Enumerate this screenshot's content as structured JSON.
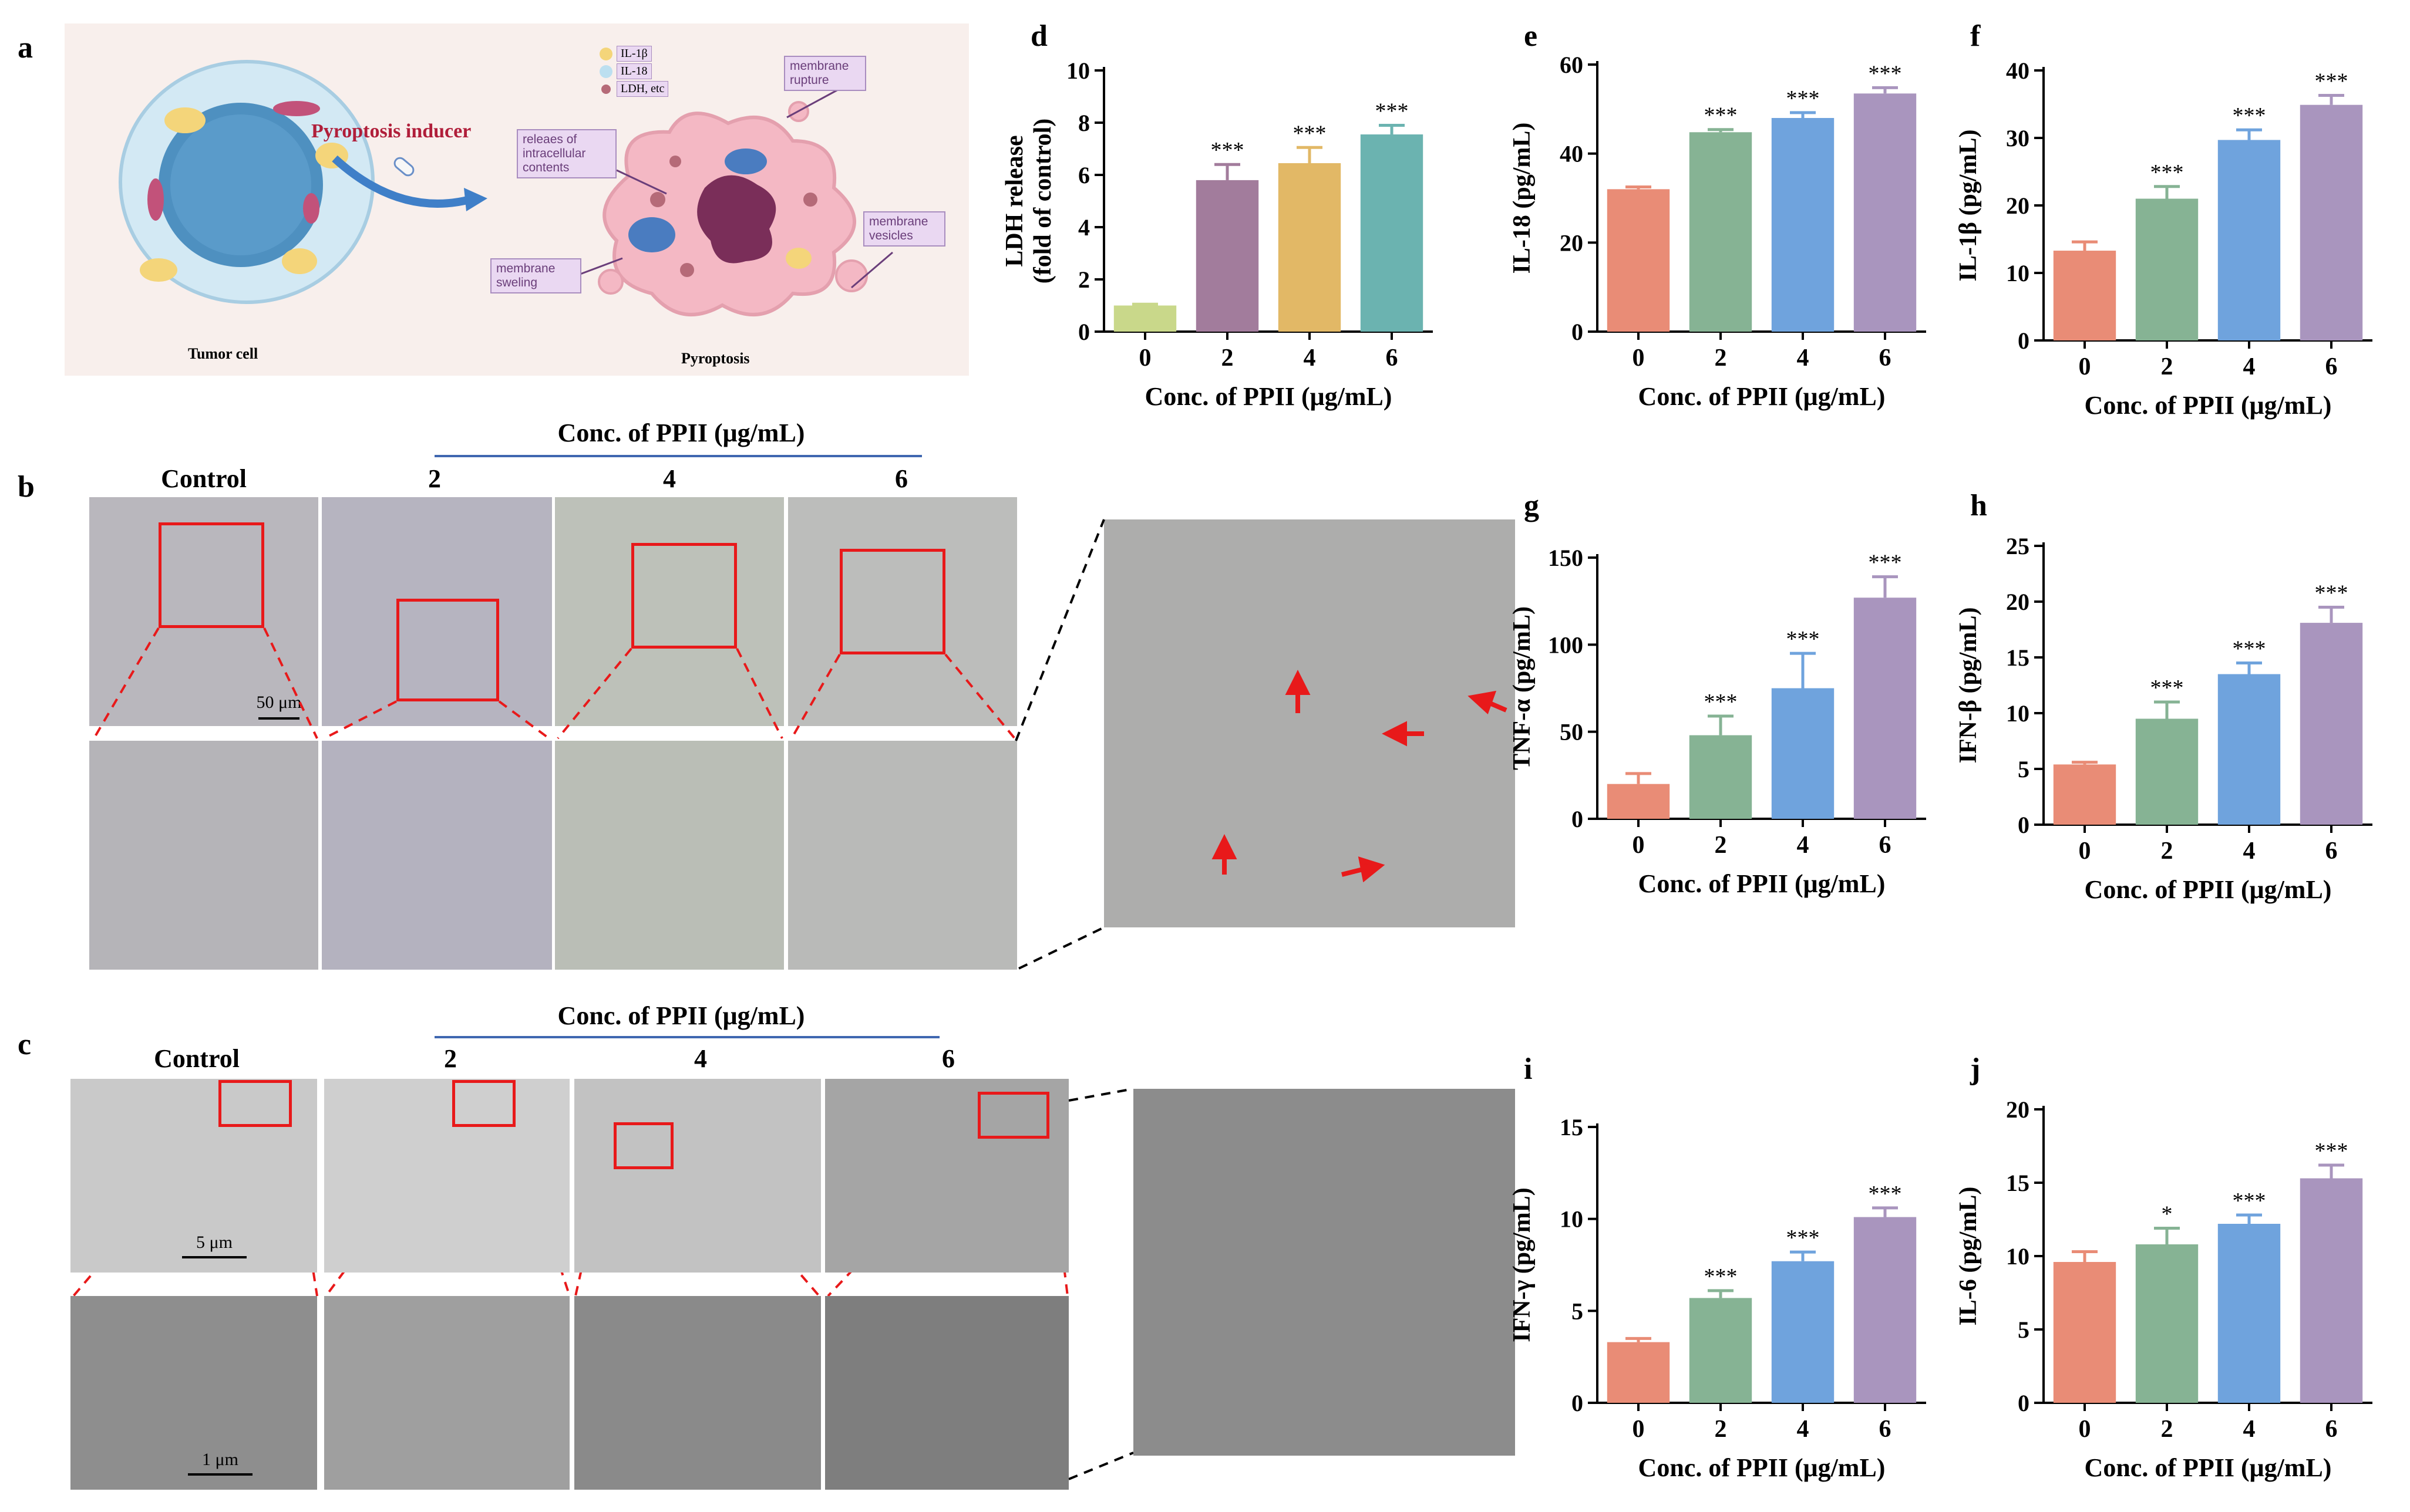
{
  "panel_letters": {
    "a": "a",
    "b": "b",
    "c": "c",
    "d": "d",
    "e": "e",
    "f": "f",
    "g": "g",
    "h": "h",
    "i": "i",
    "j": "j"
  },
  "schematic": {
    "inducer_label": "Pyroptosis inducer",
    "tumor_label": "Tumor cell",
    "pyroptosis_label": "Pyroptosis",
    "legend": [
      "IL-1β",
      "IL-18",
      "LDH, etc"
    ],
    "callouts": {
      "release": "releaes of intracellular contents",
      "rupture": "membrane rupture",
      "swelling": "membrane sweling",
      "vesicles": "membrane vesicles"
    },
    "colors": {
      "cell_outer": "#cfe6f3",
      "nucleus": "#4a8fbf",
      "pyro_cell": "#f2b9c7",
      "inducer": "#c0213c"
    }
  },
  "panel_b": {
    "conc_title": "Conc. of PPII (μg/mL)",
    "columns": [
      "Control",
      "2",
      "4",
      "6"
    ],
    "scale_label": "50 μm"
  },
  "panel_c": {
    "conc_title": "Conc. of PPII (μg/mL)",
    "columns": [
      "Control",
      "2",
      "4",
      "6"
    ],
    "scale_top": "5 μm",
    "scale_bottom": "1 μm"
  },
  "chart_data": [
    {
      "id": "d",
      "type": "bar",
      "categories": [
        "0",
        "2",
        "4",
        "6"
      ],
      "values": [
        1.0,
        5.8,
        6.45,
        7.55
      ],
      "errors": [
        0.05,
        0.6,
        0.6,
        0.35
      ],
      "significance": [
        "",
        "***",
        "***",
        "***"
      ],
      "ylabel_lines": [
        "LDH release",
        "(fold of control)"
      ],
      "xlabel": "Conc. of PPII (μg/mL)",
      "ylim": [
        0,
        10
      ],
      "ticks": [
        0,
        2,
        4,
        6,
        8,
        10
      ],
      "colors": [
        "#c9d88a",
        "#a27c9c",
        "#e2b866",
        "#6bb3b0"
      ]
    },
    {
      "id": "e",
      "type": "bar",
      "categories": [
        "0",
        "2",
        "4",
        "6"
      ],
      "values": [
        32,
        44.8,
        48,
        53.5
      ],
      "errors": [
        0.5,
        0.6,
        1.2,
        1.3
      ],
      "significance": [
        "",
        "***",
        "***",
        "***"
      ],
      "ylabel_lines": [
        "IL-18 (pg/mL)"
      ],
      "xlabel": "Conc. of PPII (μg/mL)",
      "ylim": [
        0,
        60
      ],
      "ticks": [
        0,
        20,
        40,
        60
      ],
      "colors": [
        "#e98c76",
        "#86b394",
        "#6fa3dd",
        "#a995be"
      ]
    },
    {
      "id": "f",
      "type": "bar",
      "categories": [
        "0",
        "2",
        "4",
        "6"
      ],
      "values": [
        13.3,
        21,
        29.7,
        34.9
      ],
      "errors": [
        1.3,
        1.8,
        1.5,
        1.4
      ],
      "significance": [
        "",
        "***",
        "***",
        "***"
      ],
      "ylabel_lines": [
        "IL-1β (pg/mL)"
      ],
      "xlabel": "Conc. of PPII (μg/mL)",
      "ylim": [
        0,
        40
      ],
      "ticks": [
        0,
        10,
        20,
        30,
        40
      ],
      "colors": [
        "#e98c76",
        "#86b394",
        "#6fa3dd",
        "#a995be"
      ]
    },
    {
      "id": "g",
      "type": "bar",
      "categories": [
        "0",
        "2",
        "4",
        "6"
      ],
      "values": [
        20,
        48,
        75,
        127
      ],
      "errors": [
        6,
        11,
        20,
        12
      ],
      "significance": [
        "",
        "***",
        "***",
        "***"
      ],
      "ylabel_lines": [
        "TNF-α (pg/mL)"
      ],
      "xlabel": "Conc. of PPII (μg/mL)",
      "ylim": [
        0,
        150
      ],
      "ticks": [
        0,
        50,
        100,
        150
      ],
      "colors": [
        "#e98c76",
        "#86b394",
        "#6fa3dd",
        "#a995be"
      ]
    },
    {
      "id": "h",
      "type": "bar",
      "categories": [
        "0",
        "2",
        "4",
        "6"
      ],
      "values": [
        5.4,
        9.5,
        13.5,
        18.1
      ],
      "errors": [
        0.2,
        1.5,
        1.0,
        1.4
      ],
      "significance": [
        "",
        "***",
        "***",
        "***"
      ],
      "ylabel_lines": [
        "IFN-β (pg/mL)"
      ],
      "xlabel": "Conc. of PPII (μg/mL)",
      "ylim": [
        0,
        25
      ],
      "ticks": [
        0,
        5,
        10,
        15,
        20,
        25
      ],
      "colors": [
        "#e98c76",
        "#86b394",
        "#6fa3dd",
        "#a995be"
      ]
    },
    {
      "id": "i",
      "type": "bar",
      "categories": [
        "0",
        "2",
        "4",
        "6"
      ],
      "values": [
        3.3,
        5.7,
        7.7,
        10.1
      ],
      "errors": [
        0.2,
        0.4,
        0.5,
        0.5
      ],
      "significance": [
        "",
        "***",
        "***",
        "***"
      ],
      "ylabel_lines": [
        "IFN-γ (pg/mL)"
      ],
      "xlabel": "Conc. of PPII (μg/mL)",
      "ylim": [
        0,
        15
      ],
      "ticks": [
        0,
        5,
        10,
        15
      ],
      "colors": [
        "#e98c76",
        "#86b394",
        "#6fa3dd",
        "#a995be"
      ]
    },
    {
      "id": "j",
      "type": "bar",
      "categories": [
        "0",
        "2",
        "4",
        "6"
      ],
      "values": [
        9.6,
        10.8,
        12.2,
        15.3
      ],
      "errors": [
        0.7,
        1.1,
        0.6,
        0.9
      ],
      "significance": [
        "",
        "*",
        "***",
        "***"
      ],
      "ylabel_lines": [
        "IL-6 (pg/mL)"
      ],
      "xlabel": "Conc. of PPII (μg/mL)",
      "ylim": [
        0,
        20
      ],
      "ticks": [
        0,
        5,
        10,
        15,
        20
      ],
      "colors": [
        "#e98c76",
        "#86b394",
        "#6fa3dd",
        "#a995be"
      ]
    }
  ]
}
